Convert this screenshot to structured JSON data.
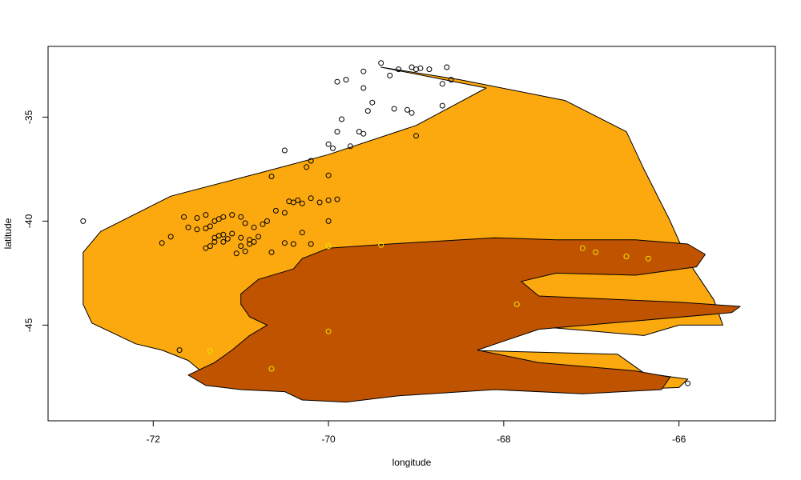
{
  "chart_data": {
    "type": "scatter",
    "title": "",
    "xlabel": "longitude",
    "ylabel": "latitude",
    "xlim": [
      -73.2,
      -64.9
    ],
    "ylim": [
      -49.6,
      -31.6
    ],
    "x_ticks": [
      -72,
      -70,
      -68,
      -66
    ],
    "y_ticks": [
      -35,
      -40,
      -45
    ],
    "x_tick_labels": [
      "-72",
      "-70",
      "-68",
      "-66"
    ],
    "y_tick_labels": [
      "-35",
      "-40",
      "-45"
    ],
    "grid": false,
    "legend": "none",
    "colors": {
      "region_outer": "#fca90f",
      "region_inner": "#c05300",
      "region_outline": "#000000",
      "points_black": "#000000",
      "points_yellow": "#e8e800"
    },
    "regions": [
      {
        "fill": "region_outer",
        "outline_lonlat": [
          [
            -72.8,
            -42.5
          ],
          [
            -72.8,
            -41.5
          ],
          [
            -72.6,
            -40.5
          ],
          [
            -71.8,
            -38.8
          ],
          [
            -70.8,
            -37.7
          ],
          [
            -70.0,
            -36.8
          ],
          [
            -69.0,
            -35.4
          ],
          [
            -68.2,
            -33.6
          ],
          [
            -69.4,
            -32.6
          ],
          [
            -68.5,
            -33.2
          ],
          [
            -67.3,
            -34.2
          ],
          [
            -66.6,
            -35.7
          ],
          [
            -66.4,
            -37.5
          ],
          [
            -66.1,
            -40.0
          ],
          [
            -65.9,
            -41.9
          ],
          [
            -65.6,
            -43.8
          ],
          [
            -65.5,
            -45.0
          ],
          [
            -66.0,
            -45.0
          ],
          [
            -66.4,
            -45.5
          ],
          [
            -67.8,
            -45.0
          ],
          [
            -69.3,
            -45.1
          ],
          [
            -69.9,
            -45.5
          ],
          [
            -70.3,
            -46.0
          ],
          [
            -66.7,
            -46.4
          ],
          [
            -66.4,
            -47.3
          ],
          [
            -65.9,
            -47.6
          ],
          [
            -66.0,
            -48.0
          ],
          [
            -66.6,
            -48.1
          ],
          [
            -67.9,
            -48.1
          ],
          [
            -70.3,
            -47.9
          ],
          [
            -71.4,
            -47.4
          ],
          [
            -71.6,
            -46.7
          ],
          [
            -71.9,
            -46.2
          ],
          [
            -72.2,
            -45.9
          ],
          [
            -72.5,
            -45.3
          ],
          [
            -72.7,
            -44.9
          ],
          [
            -72.8,
            -44.0
          ],
          [
            -72.8,
            -43.2
          ]
        ]
      },
      {
        "fill": "region_inner",
        "outline_lonlat": [
          [
            -70.0,
            -41.3
          ],
          [
            -69.3,
            -41.1
          ],
          [
            -68.1,
            -40.8
          ],
          [
            -67.4,
            -40.9
          ],
          [
            -66.5,
            -40.9
          ],
          [
            -65.9,
            -41.1
          ],
          [
            -65.7,
            -41.6
          ],
          [
            -65.8,
            -42.2
          ],
          [
            -66.5,
            -42.6
          ],
          [
            -67.4,
            -42.5
          ],
          [
            -67.8,
            -42.9
          ],
          [
            -67.6,
            -43.6
          ],
          [
            -66.0,
            -43.9
          ],
          [
            -65.3,
            -44.1
          ],
          [
            -65.4,
            -44.4
          ],
          [
            -66.5,
            -44.8
          ],
          [
            -67.6,
            -45.2
          ],
          [
            -68.3,
            -46.2
          ],
          [
            -67.6,
            -46.8
          ],
          [
            -66.5,
            -47.2
          ],
          [
            -66.1,
            -47.5
          ],
          [
            -66.2,
            -48.1
          ],
          [
            -67.1,
            -48.3
          ],
          [
            -68.1,
            -48.1
          ],
          [
            -69.2,
            -48.4
          ],
          [
            -69.8,
            -48.7
          ],
          [
            -70.3,
            -48.6
          ],
          [
            -70.5,
            -48.2
          ],
          [
            -71.0,
            -48.1
          ],
          [
            -71.4,
            -47.9
          ],
          [
            -71.6,
            -47.4
          ],
          [
            -71.3,
            -46.8
          ],
          [
            -71.1,
            -46.2
          ],
          [
            -70.9,
            -45.5
          ],
          [
            -70.7,
            -45.0
          ],
          [
            -70.9,
            -44.6
          ],
          [
            -71.0,
            -44.0
          ],
          [
            -71.0,
            -43.5
          ],
          [
            -70.8,
            -42.8
          ],
          [
            -70.4,
            -42.3
          ],
          [
            -70.3,
            -41.8
          ]
        ]
      }
    ],
    "series": [
      {
        "color": "points_black",
        "points": [
          [
            -69.4,
            -32.4
          ],
          [
            -69.6,
            -32.8
          ],
          [
            -69.9,
            -33.3
          ],
          [
            -69.8,
            -33.2
          ],
          [
            -69.3,
            -33.0
          ],
          [
            -69.2,
            -32.7
          ],
          [
            -69.0,
            -32.7
          ],
          [
            -69.05,
            -32.6
          ],
          [
            -68.95,
            -32.65
          ],
          [
            -68.85,
            -32.7
          ],
          [
            -68.65,
            -32.6
          ],
          [
            -68.6,
            -33.2
          ],
          [
            -68.7,
            -33.4
          ],
          [
            -69.6,
            -33.6
          ],
          [
            -69.5,
            -34.3
          ],
          [
            -69.55,
            -34.7
          ],
          [
            -69.25,
            -34.6
          ],
          [
            -69.1,
            -34.65
          ],
          [
            -69.05,
            -34.8
          ],
          [
            -68.7,
            -34.45
          ],
          [
            -69.0,
            -35.9
          ],
          [
            -69.85,
            -35.1
          ],
          [
            -69.9,
            -35.7
          ],
          [
            -69.65,
            -35.7
          ],
          [
            -69.6,
            -35.8
          ],
          [
            -70.0,
            -36.3
          ],
          [
            -69.95,
            -36.5
          ],
          [
            -69.75,
            -36.4
          ],
          [
            -70.5,
            -36.6
          ],
          [
            -70.2,
            -37.1
          ],
          [
            -70.25,
            -37.4
          ],
          [
            -70.0,
            -37.8
          ],
          [
            -70.65,
            -37.85
          ],
          [
            -70.35,
            -39.0
          ],
          [
            -70.4,
            -39.1
          ],
          [
            -70.45,
            -39.05
          ],
          [
            -70.3,
            -39.15
          ],
          [
            -70.2,
            -38.9
          ],
          [
            -70.1,
            -39.1
          ],
          [
            -70.0,
            -39.0
          ],
          [
            -69.9,
            -38.95
          ],
          [
            -70.0,
            -40.0
          ],
          [
            -70.6,
            -39.5
          ],
          [
            -70.5,
            -39.6
          ],
          [
            -70.7,
            -40.0
          ],
          [
            -70.75,
            -40.15
          ],
          [
            -70.85,
            -40.3
          ],
          [
            -70.95,
            -40.1
          ],
          [
            -71.0,
            -39.8
          ],
          [
            -71.1,
            -39.7
          ],
          [
            -71.2,
            -39.8
          ],
          [
            -71.25,
            -39.9
          ],
          [
            -71.3,
            -40.0
          ],
          [
            -71.35,
            -40.25
          ],
          [
            -71.4,
            -40.35
          ],
          [
            -71.5,
            -40.4
          ],
          [
            -71.6,
            -40.3
          ],
          [
            -71.4,
            -39.7
          ],
          [
            -71.5,
            -39.85
          ],
          [
            -71.65,
            -39.8
          ],
          [
            -71.1,
            -40.6
          ],
          [
            -71.2,
            -40.65
          ],
          [
            -71.25,
            -40.7
          ],
          [
            -71.3,
            -40.8
          ],
          [
            -71.15,
            -40.85
          ],
          [
            -71.0,
            -40.8
          ],
          [
            -70.9,
            -40.9
          ],
          [
            -70.85,
            -41.0
          ],
          [
            -70.8,
            -40.75
          ],
          [
            -71.2,
            -41.0
          ],
          [
            -71.3,
            -41.0
          ],
          [
            -71.35,
            -41.2
          ],
          [
            -71.4,
            -41.3
          ],
          [
            -71.0,
            -41.2
          ],
          [
            -70.9,
            -41.1
          ],
          [
            -70.95,
            -41.45
          ],
          [
            -71.05,
            -41.55
          ],
          [
            -70.65,
            -41.5
          ],
          [
            -70.5,
            -41.05
          ],
          [
            -70.4,
            -41.1
          ],
          [
            -70.2,
            -41.1
          ],
          [
            -70.3,
            -40.55
          ],
          [
            -71.9,
            -41.05
          ],
          [
            -71.8,
            -40.75
          ],
          [
            -72.8,
            -40.0
          ],
          [
            -71.7,
            -46.2
          ],
          [
            -65.9,
            -47.8
          ]
        ]
      },
      {
        "color": "points_yellow",
        "points": [
          [
            -70.0,
            -41.2
          ],
          [
            -69.4,
            -41.15
          ],
          [
            -67.1,
            -41.3
          ],
          [
            -66.95,
            -41.5
          ],
          [
            -66.6,
            -41.7
          ],
          [
            -66.35,
            -41.8
          ],
          [
            -67.85,
            -44.0
          ],
          [
            -70.0,
            -45.3
          ],
          [
            -71.35,
            -46.25
          ],
          [
            -70.65,
            -47.1
          ]
        ]
      }
    ]
  }
}
